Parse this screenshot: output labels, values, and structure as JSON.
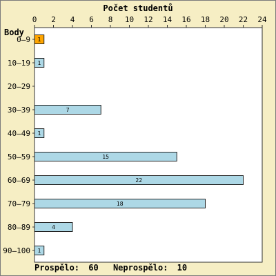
{
  "chart_data": {
    "type": "bar",
    "orientation": "horizontal",
    "title": "Počet studentů",
    "ylabel": "Body",
    "xlabel": "",
    "categories": [
      "0–9",
      "10–19",
      "20–29",
      "30–39",
      "40–49",
      "50–59",
      "60–69",
      "70–79",
      "80–89",
      "90–100"
    ],
    "values": [
      1,
      1,
      0,
      7,
      1,
      15,
      22,
      18,
      4,
      1
    ],
    "xlim": [
      0,
      24
    ],
    "xticks": [
      0,
      2,
      4,
      6,
      8,
      10,
      12,
      14,
      16,
      18,
      20,
      22,
      24
    ],
    "grid": false,
    "colors": {
      "default_bar": "#add8e6",
      "highlight_bar": "#ffa500",
      "highlight_index": 0,
      "background": "#f6eec4",
      "plot_background": "#ffffff",
      "axis": "#333333"
    }
  },
  "footer": {
    "passed_label": "Prospělo:",
    "passed_value": "60",
    "failed_label": "Neprospělo:",
    "failed_value": "10"
  }
}
